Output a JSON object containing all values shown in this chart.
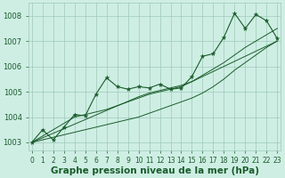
{
  "x": [
    0,
    1,
    2,
    3,
    4,
    5,
    6,
    7,
    8,
    9,
    10,
    11,
    12,
    13,
    14,
    15,
    16,
    17,
    18,
    19,
    20,
    21,
    22,
    23
  ],
  "y_main": [
    1003.0,
    1003.5,
    1003.1,
    1003.6,
    1004.1,
    1004.05,
    1004.9,
    1005.55,
    1005.2,
    1005.1,
    1005.2,
    1005.15,
    1005.3,
    1005.1,
    1005.15,
    1005.6,
    1006.4,
    1006.5,
    1007.15,
    1008.1,
    1007.5,
    1008.05,
    1007.8,
    1007.1
  ],
  "y_trend1": [
    1003.0,
    1003.18,
    1003.36,
    1003.54,
    1003.72,
    1003.9,
    1004.08,
    1004.26,
    1004.44,
    1004.62,
    1004.8,
    1004.95,
    1005.05,
    1005.15,
    1005.25,
    1005.4,
    1005.6,
    1005.8,
    1006.0,
    1006.2,
    1006.4,
    1006.6,
    1006.8,
    1007.0
  ],
  "y_trend2": [
    1003.0,
    1003.25,
    1003.5,
    1003.75,
    1004.0,
    1004.1,
    1004.2,
    1004.3,
    1004.45,
    1004.6,
    1004.75,
    1004.9,
    1005.0,
    1005.1,
    1005.2,
    1005.4,
    1005.65,
    1005.9,
    1006.15,
    1006.45,
    1006.75,
    1007.0,
    1007.25,
    1007.5
  ],
  "y_trend3": [
    1003.0,
    1003.1,
    1003.2,
    1003.3,
    1003.4,
    1003.5,
    1003.6,
    1003.7,
    1003.8,
    1003.9,
    1004.0,
    1004.15,
    1004.3,
    1004.45,
    1004.6,
    1004.75,
    1004.95,
    1005.2,
    1005.5,
    1005.85,
    1006.15,
    1006.45,
    1006.75,
    1007.0
  ],
  "bg_color": "#ceeee4",
  "grid_color": "#9ec9b8",
  "line_color": "#1a5c2a",
  "marker": "*",
  "marker_size": 3.5,
  "ylim": [
    1002.7,
    1008.5
  ],
  "xlim": [
    -0.3,
    23.3
  ],
  "yticks": [
    1003,
    1004,
    1005,
    1006,
    1007,
    1008
  ],
  "xtick_labels": [
    "0",
    "1",
    "2",
    "3",
    "4",
    "5",
    "6",
    "7",
    "8",
    "9",
    "10",
    "11",
    "12",
    "13",
    "14",
    "15",
    "16",
    "17",
    "18",
    "19",
    "20",
    "21",
    "22",
    "23"
  ],
  "xlabel": "Graphe pression niveau de la mer (hPa)",
  "label_color": "#1a5c2a",
  "font_size_yticks": 6,
  "font_size_xticks": 5.5,
  "font_size_xlabel": 7.5
}
